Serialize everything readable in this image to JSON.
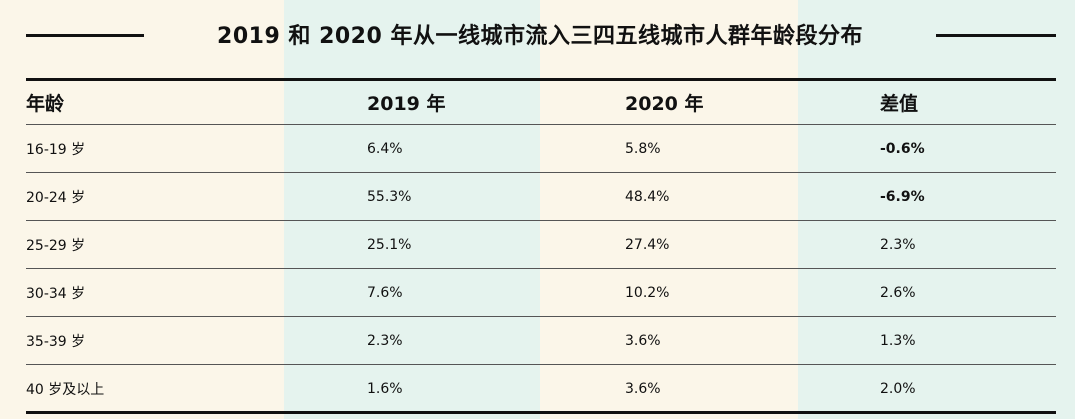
{
  "title": "2019 和 2020 年从一线城市流入三四五线城市人群年龄段分布",
  "table": {
    "headers": [
      "年龄",
      "2019 年",
      "2020 年",
      "差值"
    ],
    "rows": [
      {
        "age": "16-19 岁",
        "y2019": "6.4%",
        "y2020": "5.8%",
        "diff": "-0.6%"
      },
      {
        "age": "20-24 岁",
        "y2019": "55.3%",
        "y2020": "48.4%",
        "diff": "-6.9%"
      },
      {
        "age": "25-29 岁",
        "y2019": "25.1%",
        "y2020": "27.4%",
        "diff": "2.3%"
      },
      {
        "age": "30-34 岁",
        "y2019": "7.6%",
        "y2020": "10.2%",
        "diff": "2.6%"
      },
      {
        "age": "35-39 岁",
        "y2019": "2.3%",
        "y2020": "3.6%",
        "diff": "1.3%"
      },
      {
        "age": "40 岁及以上",
        "y2019": "1.6%",
        "y2020": "3.6%",
        "diff": "2.0%"
      }
    ]
  },
  "colors": {
    "cream": "#fbf6e9",
    "mint": "#e5f3ee",
    "text": "#111111"
  }
}
